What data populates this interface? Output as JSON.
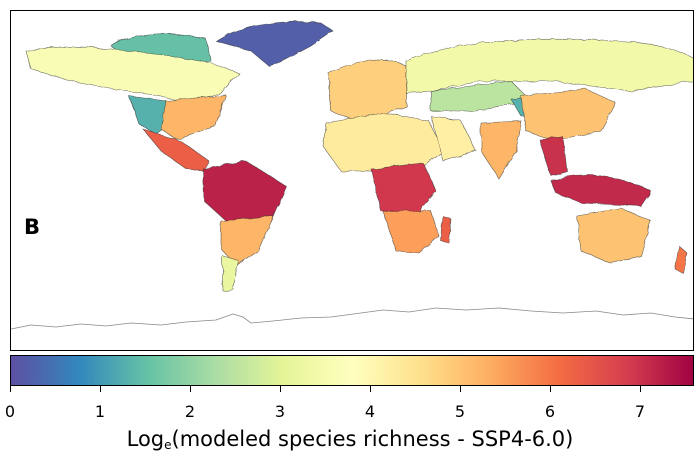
{
  "panel_label": "B",
  "colorbar": {
    "label_prefix": "Log",
    "label_subscript": "e",
    "label_suffix": "(modeled species richness - SSP4-6.0)",
    "min": 0,
    "max": 7.6,
    "ticks": [
      "0",
      "1",
      "2",
      "3",
      "4",
      "5",
      "6",
      "7"
    ],
    "colormap": "Spectral_r",
    "stops": [
      "#5e4fa2",
      "#3288bd",
      "#66c2a5",
      "#abdda4",
      "#e6f598",
      "#ffffbf",
      "#fee08b",
      "#fdae61",
      "#f46d43",
      "#d53e4f",
      "#9e0142"
    ]
  },
  "regions": [
    {
      "name": "Greenland",
      "value": 0.2
    },
    {
      "name": "Canadian Arctic",
      "value": 1.5
    },
    {
      "name": "Canada",
      "value": 3.6
    },
    {
      "name": "Western United States",
      "value": 1.3
    },
    {
      "name": "Eastern United States",
      "value": 5.2
    },
    {
      "name": "Mexico and Central America",
      "value": 6.3
    },
    {
      "name": "Amazon Basin",
      "value": 7.2
    },
    {
      "name": "Southern South America",
      "value": 5.2
    },
    {
      "name": "Patagonia",
      "value": 3.2
    },
    {
      "name": "Europe",
      "value": 4.8
    },
    {
      "name": "Sahara",
      "value": 4.3
    },
    {
      "name": "Central Africa",
      "value": 6.9
    },
    {
      "name": "Southern Africa",
      "value": 5.5
    },
    {
      "name": "Madagascar",
      "value": 6.3
    },
    {
      "name": "Arabian Peninsula",
      "value": 4.2
    },
    {
      "name": "Russia",
      "value": 3.4
    },
    {
      "name": "Central Asia",
      "value": 2.5
    },
    {
      "name": "Tibetan Plateau",
      "value": 1.3
    },
    {
      "name": "India",
      "value": 5.2
    },
    {
      "name": "China",
      "value": 5.0
    },
    {
      "name": "Southeast Asia",
      "value": 7.0
    },
    {
      "name": "Maritime Southeast Asia",
      "value": 7.1
    },
    {
      "name": "Australia",
      "value": 5.0
    },
    {
      "name": "New Zealand",
      "value": 6.0
    }
  ]
}
